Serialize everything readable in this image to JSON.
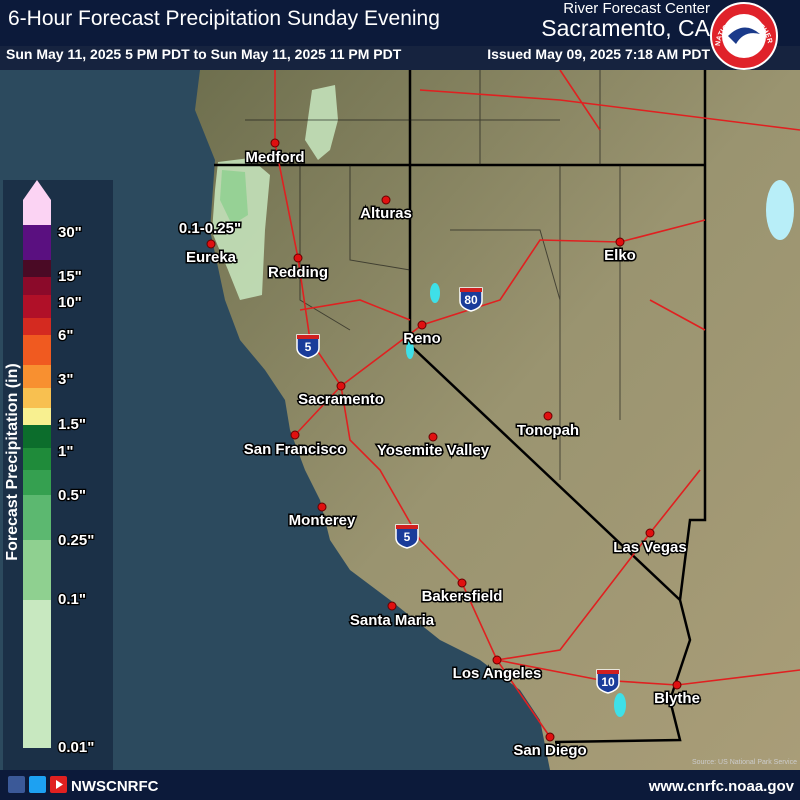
{
  "header": {
    "title": "6-Hour Forecast Precipitation Sunday Evening",
    "valid_period": "Sun May 11, 2025 5 PM PDT to Sun May 11, 2025 11 PM PDT",
    "office": "River Forecast Center",
    "location": "Sacramento, CA",
    "issued": "Issued May 09, 2025 7:18 AM PDT"
  },
  "logo": {
    "text": "NATIONAL WEATHER SERVICE"
  },
  "legend": {
    "title": "Forecast Precipitation (in)",
    "labels": [
      "30\"",
      "15\"",
      "10\"",
      "6\"",
      "3\"",
      "1.5\"",
      "1\"",
      "0.5\"",
      "0.25\"",
      "0.1\"",
      "0.01\""
    ]
  },
  "map": {
    "annotation": "0.1-0.25\"",
    "cities": [
      "Medford",
      "Alturas",
      "Eureka",
      "Redding",
      "Elko",
      "Reno",
      "Sacramento",
      "San Francisco",
      "Yosemite Valley",
      "Tonopah",
      "Monterey",
      "Las Vegas",
      "Bakersfield",
      "Santa Maria",
      "Los Angeles",
      "Blythe",
      "San Diego"
    ],
    "shields": [
      "80",
      "5",
      "5",
      "10"
    ],
    "credit": "Source: US National Park Service"
  },
  "footer": {
    "handle": "NWSCNRFC",
    "website": "www.cnrfc.noaa.gov"
  }
}
